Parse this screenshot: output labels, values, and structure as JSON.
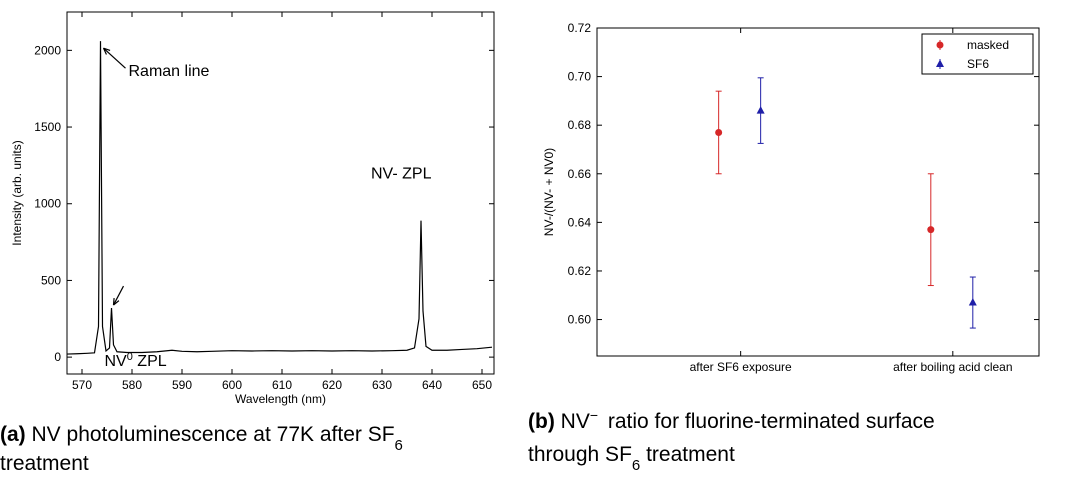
{
  "chart_data": [
    {
      "type": "line",
      "xlabel": "Wavelength (nm)",
      "ylabel": "Intensity (arb. units)",
      "xlim": [
        567,
        652.4
      ],
      "ylim": [
        -110,
        2250
      ],
      "xticks": [
        570,
        580,
        590,
        600,
        610,
        620,
        630,
        640,
        650
      ],
      "yticks": [
        0,
        500,
        1000,
        1500,
        2000
      ],
      "series": [
        {
          "color": "#000000",
          "x": [
            567,
            569,
            571,
            572.5,
            573.3,
            573.7,
            574.1,
            574.8,
            575.5,
            575.9,
            576.3,
            577,
            579,
            582,
            585,
            588,
            590,
            593,
            596,
            600,
            604,
            608,
            612,
            616,
            620,
            624,
            628,
            632,
            635,
            636.5,
            637.4,
            637.8,
            638.2,
            638.8,
            640,
            643,
            646,
            649,
            652
          ],
          "values": [
            20,
            22,
            25,
            28,
            200,
            2060,
            200,
            40,
            60,
            320,
            80,
            35,
            30,
            30,
            35,
            45,
            38,
            35,
            38,
            42,
            40,
            42,
            40,
            42,
            40,
            42,
            40,
            42,
            45,
            60,
            250,
            890,
            300,
            70,
            45,
            45,
            50,
            55,
            65
          ]
        }
      ],
      "annotations": [
        {
          "parts": [
            "Raman line"
          ],
          "x": 573.7,
          "y": 2060
        },
        {
          "parts": [
            "NV",
            "0",
            " ZPL"
          ],
          "x": 575.9,
          "y": 320
        },
        {
          "parts": [
            "NV- ZPL"
          ],
          "x": 637.8,
          "y": 890
        }
      ],
      "caption": {
        "label": "(a)",
        "parts": [
          " NV photoluminescence at 77K after SF",
          "6",
          " treatment"
        ]
      }
    },
    {
      "type": "errorbar",
      "ylabel": "NV-/(NV- + NV0)",
      "categories": [
        "after SF6 exposure",
        "after boiling acid clean"
      ],
      "ylim": [
        0.585,
        0.72
      ],
      "yticks": [
        {
          "value": 0.6,
          "label": "0.60"
        },
        {
          "value": 0.62,
          "label": "0.62"
        },
        {
          "value": 0.64,
          "label": "0.64"
        },
        {
          "value": 0.66,
          "label": "0.66"
        },
        {
          "value": 0.68,
          "label": "0.68"
        },
        {
          "value": 0.7,
          "label": "0.70"
        },
        {
          "value": 0.72,
          "label": "0.72"
        }
      ],
      "legend": "upper right",
      "series": [
        {
          "name": "masked",
          "color": "#d62728",
          "marker": "circle",
          "values": [
            0.677,
            0.637
          ],
          "errors": [
            0.017,
            0.023
          ]
        },
        {
          "name": "SF6",
          "color": "#1f1fa8",
          "marker": "triangle",
          "values": [
            0.686,
            0.607
          ],
          "errors": [
            0.0135,
            0.0105
          ]
        }
      ],
      "caption": {
        "label": "(b)",
        "parts": [
          " NV",
          "−",
          " ratio for fluorine-terminated surface",
          "through SF",
          "6",
          " treatment"
        ]
      }
    }
  ]
}
